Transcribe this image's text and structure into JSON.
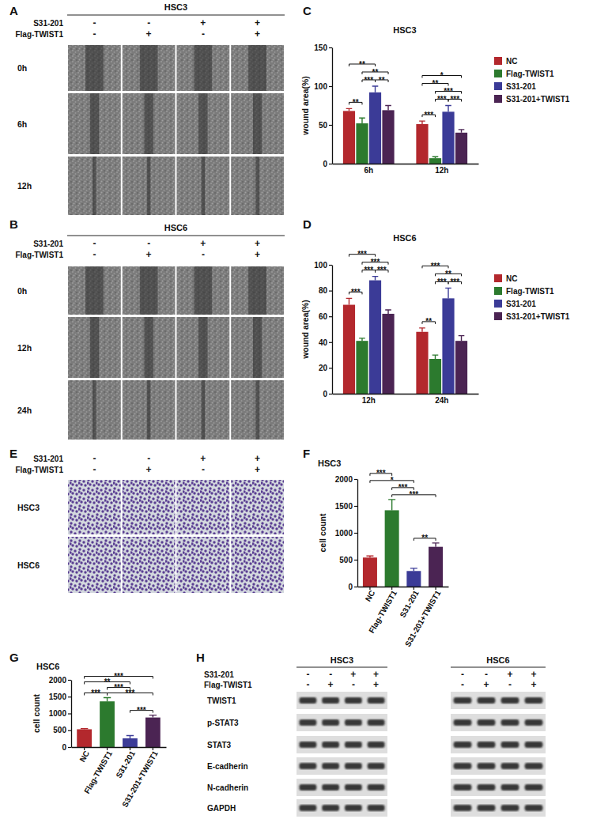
{
  "chart_data": [
    {
      "panel": "C",
      "type": "bar",
      "title": "HSC3",
      "y_label": "wound area(%)",
      "categories": [
        "6h",
        "12h"
      ],
      "series": [
        {
          "name": "NC",
          "color": "#b3282d",
          "values": [
            68,
            51
          ],
          "errors": [
            3,
            4
          ]
        },
        {
          "name": "Flag-TWIST1",
          "color": "#2c7a2e",
          "values": [
            52,
            7
          ],
          "errors": [
            7,
            2
          ]
        },
        {
          "name": "S31-201",
          "color": "#3b3b97",
          "values": [
            92,
            67
          ],
          "errors": [
            8,
            8
          ]
        },
        {
          "name": "S31-201+TWIST1",
          "color": "#4b2453",
          "values": [
            69,
            40
          ],
          "errors": [
            6,
            4
          ]
        }
      ],
      "ylim": [
        0,
        150
      ],
      "yticks": [
        0,
        50,
        100,
        150
      ],
      "legend": "right",
      "significance": [
        {
          "category": 0,
          "pair": [
            0,
            1
          ],
          "label": "**"
        },
        {
          "category": 0,
          "pair": [
            1,
            2
          ],
          "label": "***"
        },
        {
          "category": 0,
          "pair": [
            2,
            3
          ],
          "label": "**"
        },
        {
          "category": 0,
          "pair": [
            1,
            3
          ],
          "label": "**"
        },
        {
          "category": 0,
          "pair": [
            0,
            2
          ],
          "label": "**"
        },
        {
          "category": 1,
          "pair": [
            0,
            1
          ],
          "label": "***"
        },
        {
          "category": 1,
          "pair": [
            1,
            2
          ],
          "label": "***"
        },
        {
          "category": 1,
          "pair": [
            2,
            3
          ],
          "label": "***"
        },
        {
          "category": 1,
          "pair": [
            1,
            3
          ],
          "label": "***"
        },
        {
          "category": 1,
          "pair": [
            0,
            2
          ],
          "label": "**"
        },
        {
          "category": 1,
          "pair": [
            0,
            3
          ],
          "label": "*"
        }
      ]
    },
    {
      "panel": "D",
      "type": "bar",
      "title": "HSC6",
      "y_label": "wound area(%)",
      "categories": [
        "12h",
        "24h"
      ],
      "series": [
        {
          "name": "NC",
          "color": "#b3282d",
          "values": [
            69,
            48
          ],
          "errors": [
            5,
            3
          ]
        },
        {
          "name": "Flag-TWIST1",
          "color": "#2c7a2e",
          "values": [
            41,
            27
          ],
          "errors": [
            2,
            3
          ]
        },
        {
          "name": "S31-201",
          "color": "#3b3b97",
          "values": [
            88,
            74
          ],
          "errors": [
            3,
            8
          ]
        },
        {
          "name": "S31-201+TWIST1",
          "color": "#4b2453",
          "values": [
            62,
            41
          ],
          "errors": [
            3,
            4
          ]
        }
      ],
      "ylim": [
        0,
        100
      ],
      "yticks": [
        0,
        20,
        40,
        60,
        80,
        100
      ],
      "legend": "right",
      "significance": [
        {
          "category": 0,
          "pair": [
            0,
            1
          ],
          "label": "***"
        },
        {
          "category": 0,
          "pair": [
            1,
            2
          ],
          "label": "***"
        },
        {
          "category": 0,
          "pair": [
            2,
            3
          ],
          "label": "***"
        },
        {
          "category": 0,
          "pair": [
            1,
            3
          ],
          "label": "***"
        },
        {
          "category": 0,
          "pair": [
            0,
            2
          ],
          "label": "***"
        },
        {
          "category": 1,
          "pair": [
            0,
            1
          ],
          "label": "**"
        },
        {
          "category": 1,
          "pair": [
            1,
            2
          ],
          "label": "***"
        },
        {
          "category": 1,
          "pair": [
            2,
            3
          ],
          "label": "***"
        },
        {
          "category": 1,
          "pair": [
            1,
            3
          ],
          "label": "**"
        },
        {
          "category": 1,
          "pair": [
            0,
            2
          ],
          "label": "***"
        }
      ]
    },
    {
      "panel": "F",
      "type": "bar",
      "title": "HSC3",
      "y_label": "cell count",
      "categories": [
        "NC",
        "Flag-TWIST1",
        "S31-201",
        "S31-201+TWIST1"
      ],
      "values": [
        540,
        1420,
        290,
        740
      ],
      "errors": [
        30,
        200,
        50,
        70
      ],
      "colors": [
        "#b3282d",
        "#2c7a2e",
        "#3b3b97",
        "#4b2453"
      ],
      "ylim": [
        0,
        2000
      ],
      "yticks": [
        0,
        500,
        1000,
        1500,
        2000
      ],
      "significance": [
        {
          "pair": [
            2,
            3
          ],
          "label": "**"
        },
        {
          "pair": [
            1,
            3
          ],
          "label": "***"
        },
        {
          "pair": [
            1,
            2
          ],
          "label": "***"
        },
        {
          "pair": [
            0,
            2
          ],
          "label": "*"
        },
        {
          "pair": [
            0,
            1
          ],
          "label": "***"
        }
      ]
    },
    {
      "panel": "G",
      "type": "bar",
      "title": "HSC6",
      "y_label": "cell count",
      "categories": [
        "NC",
        "Flag-TWIST1",
        "S31-201",
        "S31-201+TWIST1"
      ],
      "values": [
        530,
        1360,
        260,
        880
      ],
      "errors": [
        20,
        110,
        80,
        70
      ],
      "colors": [
        "#b3282d",
        "#2c7a2e",
        "#3b3b97",
        "#4b2453"
      ],
      "ylim": [
        0,
        2000
      ],
      "yticks": [
        0,
        500,
        1000,
        1500,
        2000
      ],
      "significance": [
        {
          "pair": [
            2,
            3
          ],
          "label": "***"
        },
        {
          "pair": [
            1,
            3
          ],
          "label": "***"
        },
        {
          "pair": [
            1,
            2
          ],
          "label": "***"
        },
        {
          "pair": [
            0,
            1
          ],
          "label": "***"
        },
        {
          "pair": [
            0,
            2
          ],
          "label": "**"
        },
        {
          "pair": [
            0,
            3
          ],
          "label": "***"
        }
      ]
    }
  ],
  "image_panels": [
    {
      "panel": "A",
      "title": "HSC3",
      "conditions": [
        {
          "name": "S31-201",
          "signs": [
            "-",
            "-",
            "+",
            "+"
          ]
        },
        {
          "name": "Flag-TWIST1",
          "signs": [
            "-",
            "+",
            "-",
            "+"
          ]
        }
      ],
      "rows": [
        "0h",
        "6h",
        "12h"
      ]
    },
    {
      "panel": "B",
      "title": "HSC6",
      "conditions": [
        {
          "name": "S31-201",
          "signs": [
            "-",
            "-",
            "+",
            "+"
          ]
        },
        {
          "name": "Flag-TWIST1",
          "signs": [
            "-",
            "+",
            "-",
            "+"
          ]
        }
      ],
      "rows": [
        "0h",
        "12h",
        "24h"
      ]
    },
    {
      "panel": "E",
      "conditions": [
        {
          "name": "S31-201",
          "signs": [
            "-",
            "-",
            "+",
            "+"
          ]
        },
        {
          "name": "Flag-TWIST1",
          "signs": [
            "-",
            "+",
            "-",
            "+"
          ]
        }
      ],
      "rows": [
        "HSC3",
        "HSC6"
      ]
    }
  ],
  "western_blot": {
    "panel": "H",
    "conditions": [
      "S31-201",
      "Flag-TWIST1"
    ],
    "cell_lines": [
      {
        "name": "HSC3",
        "signs": [
          [
            "-",
            "-",
            "+",
            "+"
          ],
          [
            "-",
            "+",
            "-",
            "+"
          ]
        ]
      },
      {
        "name": "HSC6",
        "signs": [
          [
            "-",
            "-",
            "+",
            "+"
          ],
          [
            "-",
            "+",
            "-",
            "+"
          ]
        ]
      }
    ],
    "proteins": [
      "TWIST1",
      "p-STAT3",
      "STAT3",
      "E-cadherin",
      "N-cadherin",
      "GAPDH"
    ]
  }
}
